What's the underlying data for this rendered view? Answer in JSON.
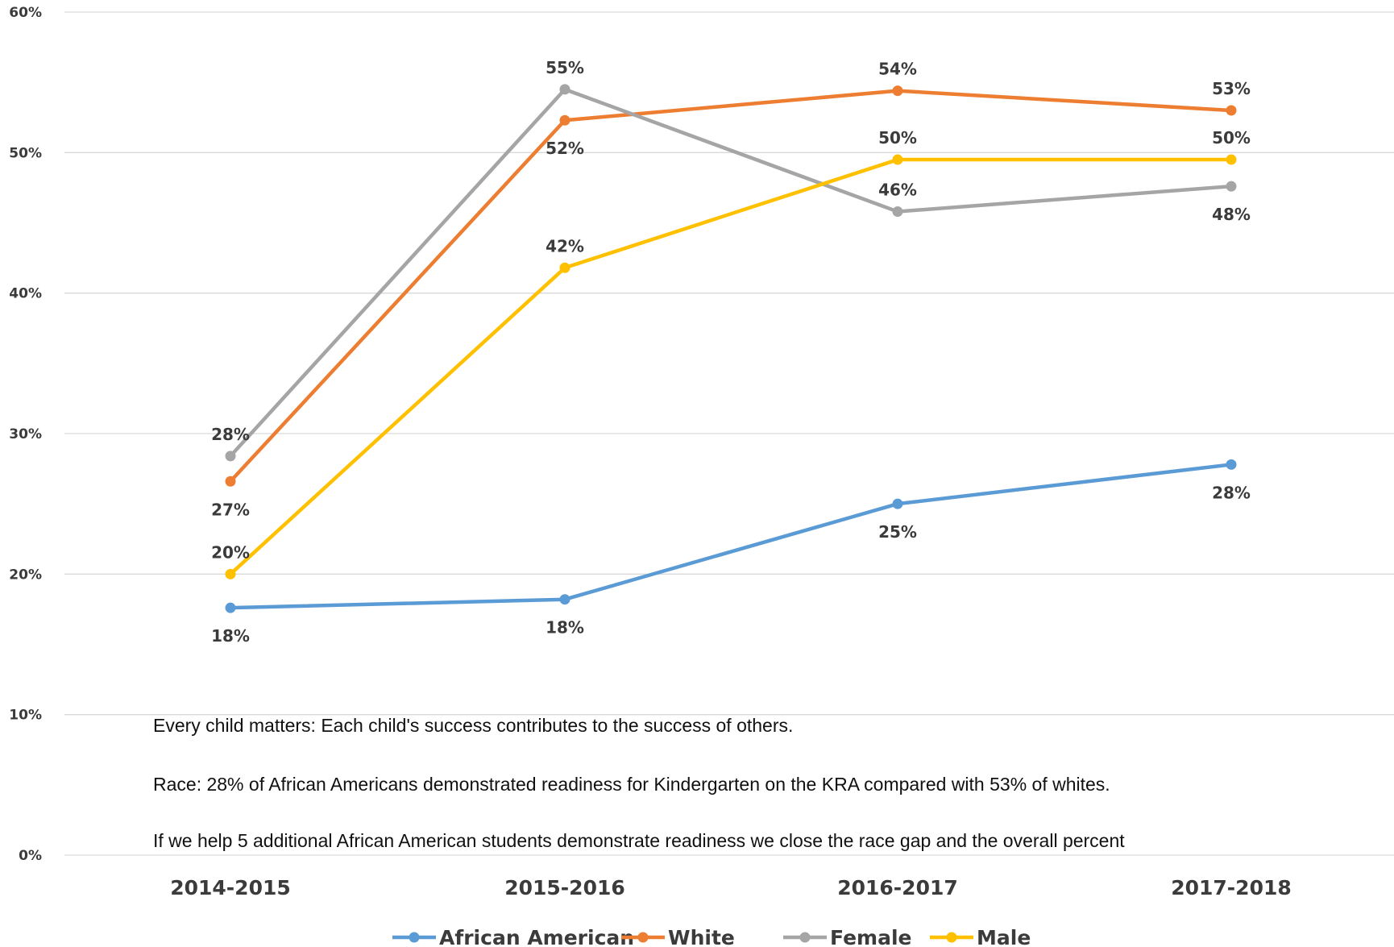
{
  "chart_data": {
    "type": "line",
    "categories": [
      "2014-2015",
      "2015-2016",
      "2016-2017",
      "2017-2018"
    ],
    "ylim": [
      0,
      60
    ],
    "yticks": [
      0,
      10,
      20,
      30,
      40,
      50,
      60
    ],
    "ytick_labels": [
      "0%",
      "10%",
      "20%",
      "30%",
      "40%",
      "50%",
      "60%"
    ],
    "grid": true,
    "legend_position": "bottom",
    "series": [
      {
        "name": "African American",
        "color": "#5b9bd5",
        "values": [
          17.6,
          18.2,
          25.0,
          27.8
        ],
        "labels": [
          "18%",
          "18%",
          "25%",
          "28%"
        ],
        "label_pos": [
          "below",
          "below",
          "below",
          "below"
        ]
      },
      {
        "name": "White",
        "color": "#ed7d31",
        "values": [
          26.6,
          52.3,
          54.4,
          53.0
        ],
        "labels": [
          "27%",
          "52%",
          "54%",
          "53%"
        ],
        "label_pos": [
          "below",
          "below",
          "above",
          "above"
        ]
      },
      {
        "name": "Female",
        "color": "#a5a5a5",
        "values": [
          28.4,
          54.5,
          45.8,
          47.6
        ],
        "labels": [
          "28%",
          "55%",
          "46%",
          "48%"
        ],
        "label_pos": [
          "above",
          "above",
          "above",
          "below"
        ]
      },
      {
        "name": "Male",
        "color": "#ffc000",
        "values": [
          20.0,
          41.8,
          49.5,
          49.5
        ],
        "labels": [
          "20%",
          "42%",
          "50%",
          "50%"
        ],
        "label_pos": [
          "above",
          "above",
          "above",
          "above"
        ]
      }
    ],
    "annotations": [
      "Every child matters: Each child's success contributes to the success of others.",
      "Race: 28% of African Americans demonstrated readiness for Kindergarten on the KRA compared with 53% of whites.",
      "If we help 5 additional African American students demonstrate readiness we close the race gap and the overall percent"
    ]
  }
}
